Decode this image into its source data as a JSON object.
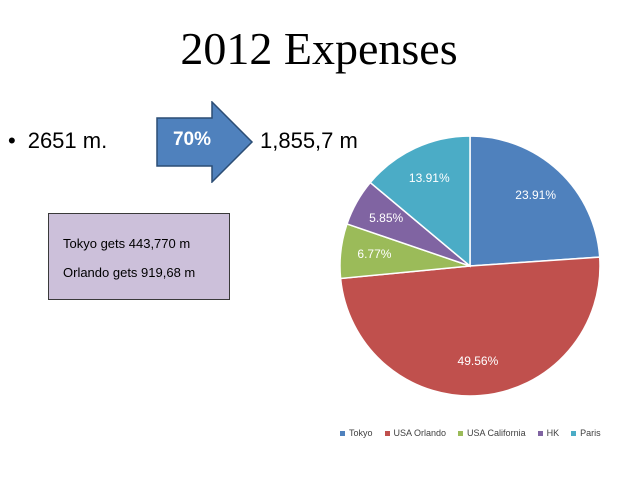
{
  "title": "2012 Expenses",
  "bullet": {
    "marker": "•",
    "text": "2651 m."
  },
  "arrow": {
    "label": "70%",
    "color": "#4f81bd"
  },
  "result": "1,855,7 m",
  "note": {
    "background": "#ccc0da",
    "lines": [
      "Tokyo gets 443,770 m",
      "Orlando gets 919,68 m"
    ]
  },
  "chart_data": {
    "type": "pie",
    "title": "",
    "categories": [
      "Tokyo",
      "USA Orlando",
      "USA California",
      "HK",
      "Paris"
    ],
    "values": [
      23.91,
      49.56,
      6.77,
      5.85,
      13.91
    ],
    "labels": [
      "23.91%",
      "49.56%",
      "6.77%",
      "5.85%",
      "13.91%"
    ],
    "colors": [
      "#4f81bd",
      "#c0504d",
      "#9bbb59",
      "#8064a2",
      "#4bacc6"
    ],
    "start_angle": "12 o'clock",
    "direction": "clockwise",
    "legend_position": "bottom"
  }
}
